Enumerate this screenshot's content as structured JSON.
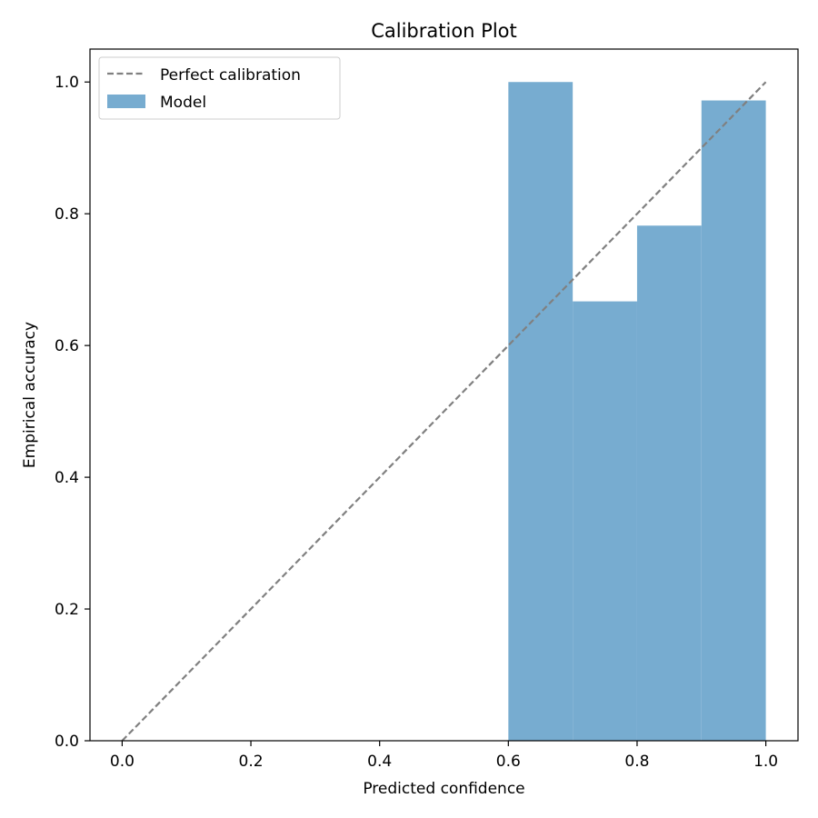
{
  "chart_data": {
    "type": "bar",
    "title": "Calibration Plot",
    "xlabel": "Predicted confidence",
    "ylabel": "Empirical accuracy",
    "xlim": [
      -0.05,
      1.05
    ],
    "ylim": [
      0.0,
      1.05
    ],
    "xticks": [
      0.0,
      0.2,
      0.4,
      0.6,
      0.8,
      1.0
    ],
    "xtick_labels": [
      "0.0",
      "0.2",
      "0.4",
      "0.6",
      "0.8",
      "1.0"
    ],
    "yticks": [
      0.0,
      0.2,
      0.4,
      0.6,
      0.8,
      1.0
    ],
    "ytick_labels": [
      "0.0",
      "0.2",
      "0.4",
      "0.6",
      "0.8",
      "1.0"
    ],
    "grid": false,
    "legend_position": "top-left",
    "bins": [
      {
        "x0": 0.6,
        "x1": 0.7,
        "value": 1.0
      },
      {
        "x0": 0.7,
        "x1": 0.8,
        "value": 0.667
      },
      {
        "x0": 0.8,
        "x1": 0.9,
        "value": 0.782
      },
      {
        "x0": 0.9,
        "x1": 1.0,
        "value": 0.972
      }
    ],
    "series": [
      {
        "name": "Perfect calibration",
        "type": "line",
        "style": "dashed",
        "color": "#808080",
        "x": [
          0.0,
          1.0
        ],
        "y": [
          0.0,
          1.0
        ]
      },
      {
        "name": "Model",
        "type": "bar",
        "color": "#77acd0"
      }
    ]
  }
}
